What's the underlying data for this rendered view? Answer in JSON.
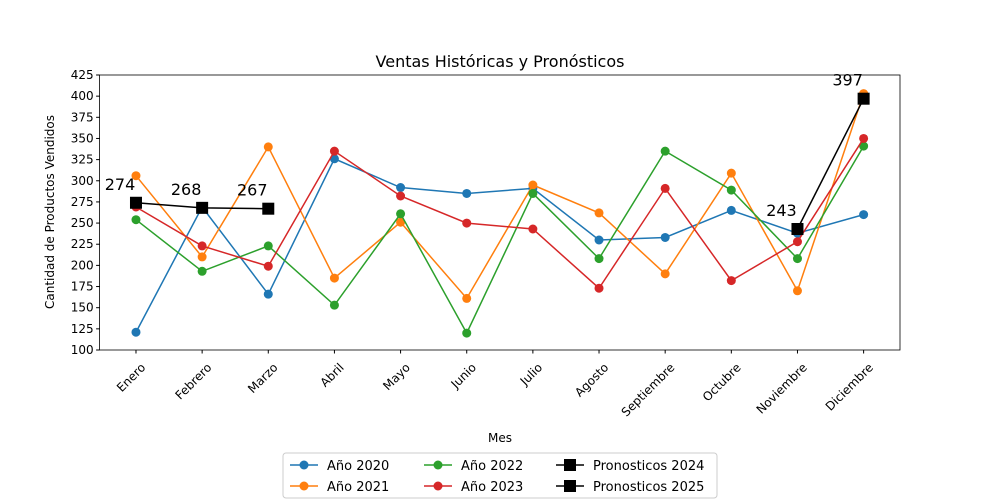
{
  "chart_data": {
    "type": "line",
    "title": "Ventas Históricas y Pronósticos",
    "xlabel": "Mes",
    "ylabel": "Cantidad de Productos Vendidos",
    "categories": [
      "Enero",
      "Febrero",
      "Marzo",
      "Abril",
      "Mayo",
      "Junio",
      "Julio",
      "Agosto",
      "Septiembre",
      "Octubre",
      "Noviembre",
      "Diciembre"
    ],
    "series": [
      {
        "name": "Año 2020",
        "color": "#1f77b4",
        "marker": "circle",
        "values": [
          121,
          269,
          166,
          326,
          292,
          285,
          291,
          230,
          233,
          265,
          238,
          260
        ]
      },
      {
        "name": "Año 2021",
        "color": "#ff7f0e",
        "marker": "circle",
        "values": [
          306,
          210,
          340,
          185,
          251,
          161,
          295,
          262,
          190,
          309,
          170,
          403
        ]
      },
      {
        "name": "Año 2022",
        "color": "#2ca02c",
        "marker": "circle",
        "values": [
          254,
          193,
          223,
          153,
          261,
          120,
          285,
          208,
          335,
          289,
          208,
          341
        ]
      },
      {
        "name": "Año 2023",
        "color": "#d62728",
        "marker": "circle",
        "values": [
          269,
          223,
          199,
          335,
          282,
          250,
          243,
          173,
          291,
          182,
          228,
          350
        ]
      },
      {
        "name": "Pronosticos 2024",
        "color": "#000000",
        "marker": "square",
        "values": [
          274,
          268,
          267,
          null,
          null,
          null,
          null,
          null,
          null,
          null,
          null,
          null
        ],
        "labeled": true
      },
      {
        "name": "Pronosticos 2025",
        "color": "#000000",
        "marker": "square",
        "values": [
          null,
          null,
          null,
          null,
          null,
          null,
          null,
          null,
          null,
          null,
          243,
          397
        ],
        "labeled": true
      }
    ],
    "xlim": [
      -0.55,
      11.55
    ],
    "ylim": [
      100,
      425
    ],
    "yticks": [
      100,
      125,
      150,
      175,
      200,
      225,
      250,
      275,
      300,
      325,
      350,
      375,
      400,
      425
    ],
    "legend": "lower center outside"
  }
}
